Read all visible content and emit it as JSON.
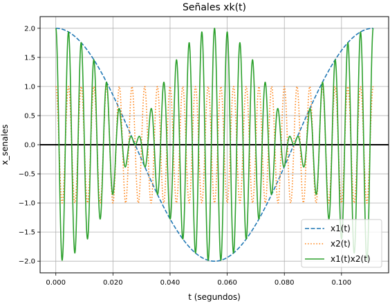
{
  "chart_data": {
    "type": "line",
    "title": "Señales xk(t)",
    "xlabel": "t (segundos)",
    "ylabel": "x_senales",
    "xlim": [
      -0.0055,
      0.1165
    ],
    "ylim": [
      -2.2,
      2.2
    ],
    "xticks": [
      0.0,
      0.02,
      0.04,
      0.06,
      0.08,
      0.1
    ],
    "xtick_labels": [
      "0.000",
      "0.020",
      "0.040",
      "0.060",
      "0.080",
      "0.100"
    ],
    "yticks": [
      -2.0,
      -1.5,
      -1.0,
      -0.5,
      0.0,
      0.5,
      1.0,
      1.5,
      2.0
    ],
    "ytick_labels": [
      "−2.0",
      "−1.5",
      "−1.0",
      "−0.5",
      "0.0",
      "0.5",
      "1.0",
      "1.5",
      "2.0"
    ],
    "grid": true,
    "legend_position": "lower right",
    "zero_line": true,
    "t_range": [
      0.0,
      0.1111
    ],
    "series": [
      {
        "name": "x1(t)",
        "style": "dashed",
        "color": "#1f77b4",
        "formula": "2*cos(2*pi*9*t)"
      },
      {
        "name": "x2(t)",
        "style": "dotted",
        "color": "#ff7f0e",
        "formula": "cos(2*pi*225*t)"
      },
      {
        "name": "x1(t)x2(t)",
        "style": "solid",
        "color": "#2ca02c",
        "formula": "x1(t)*x2(t)"
      }
    ]
  }
}
